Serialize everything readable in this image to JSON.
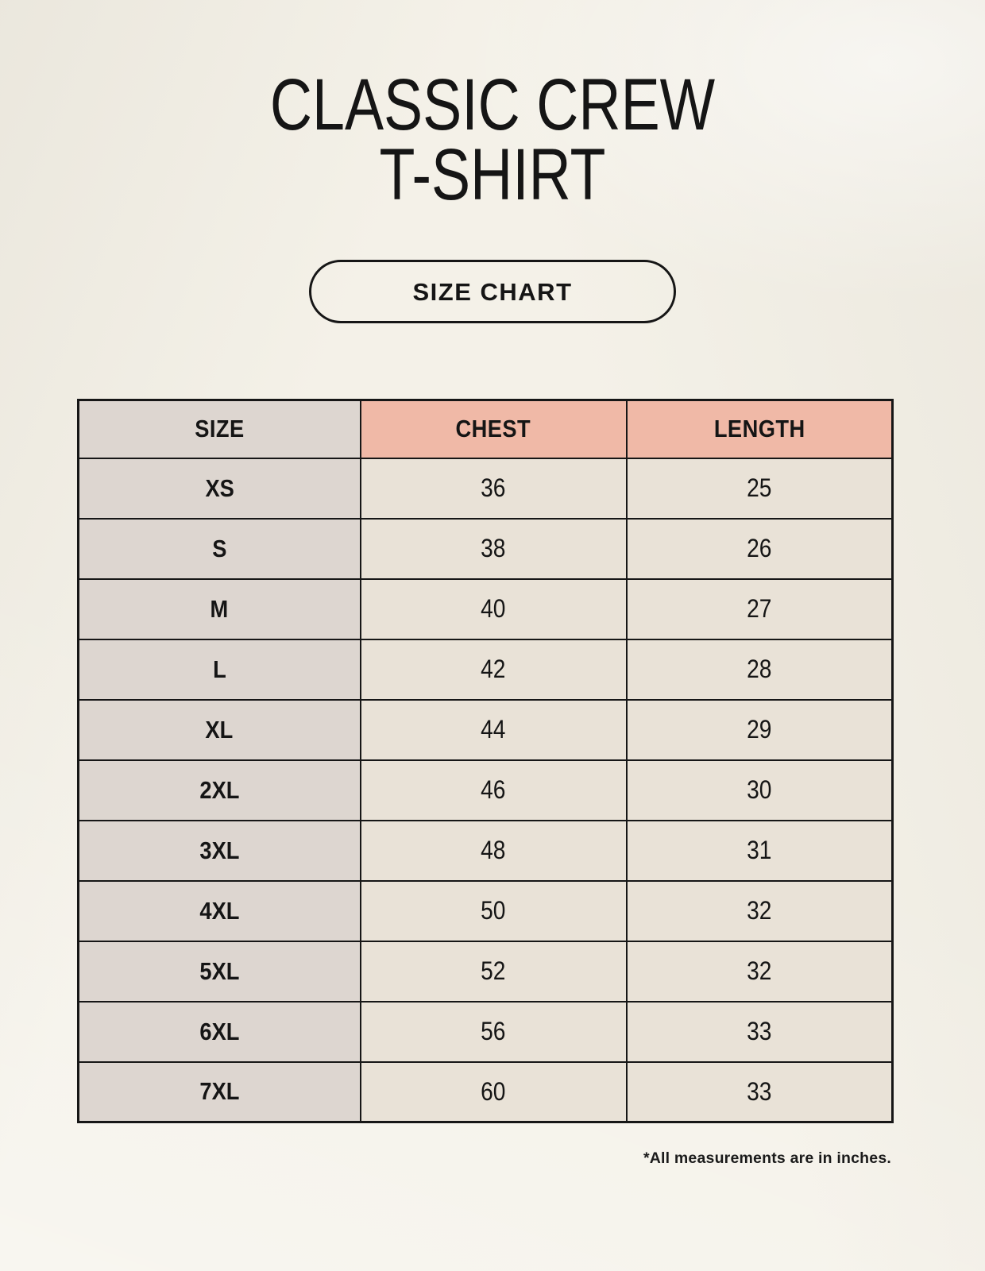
{
  "header": {
    "title_line1": "CLASSIC CREW",
    "title_line2": "T-SHIRT",
    "size_chart_button": "SIZE CHART"
  },
  "chart_data": {
    "type": "table",
    "title": "CLASSIC CREW T-SHIRT",
    "subtitle": "SIZE CHART",
    "columns": [
      "SIZE",
      "CHEST",
      "LENGTH"
    ],
    "rows": [
      [
        "XS",
        "36",
        "25"
      ],
      [
        "S",
        "38",
        "26"
      ],
      [
        "M",
        "40",
        "27"
      ],
      [
        "L",
        "42",
        "28"
      ],
      [
        "XL",
        "44",
        "29"
      ],
      [
        "2XL",
        "46",
        "30"
      ],
      [
        "3XL",
        "48",
        "31"
      ],
      [
        "4XL",
        "50",
        "32"
      ],
      [
        "5XL",
        "52",
        "32"
      ],
      [
        "6XL",
        "56",
        "33"
      ],
      [
        "7XL",
        "60",
        "33"
      ]
    ],
    "units_note": "*All measurements are in inches."
  },
  "colors": {
    "background": "#f4f1e8",
    "header_size_bg": "#ddd6d0",
    "header_accent_bg": "#f0b9a7",
    "size_column_bg": "#ddd6d0",
    "data_cell_bg": "#e9e2d7",
    "border": "#161616",
    "text": "#151515"
  },
  "footer": {
    "note": "*All measurements are in inches."
  }
}
